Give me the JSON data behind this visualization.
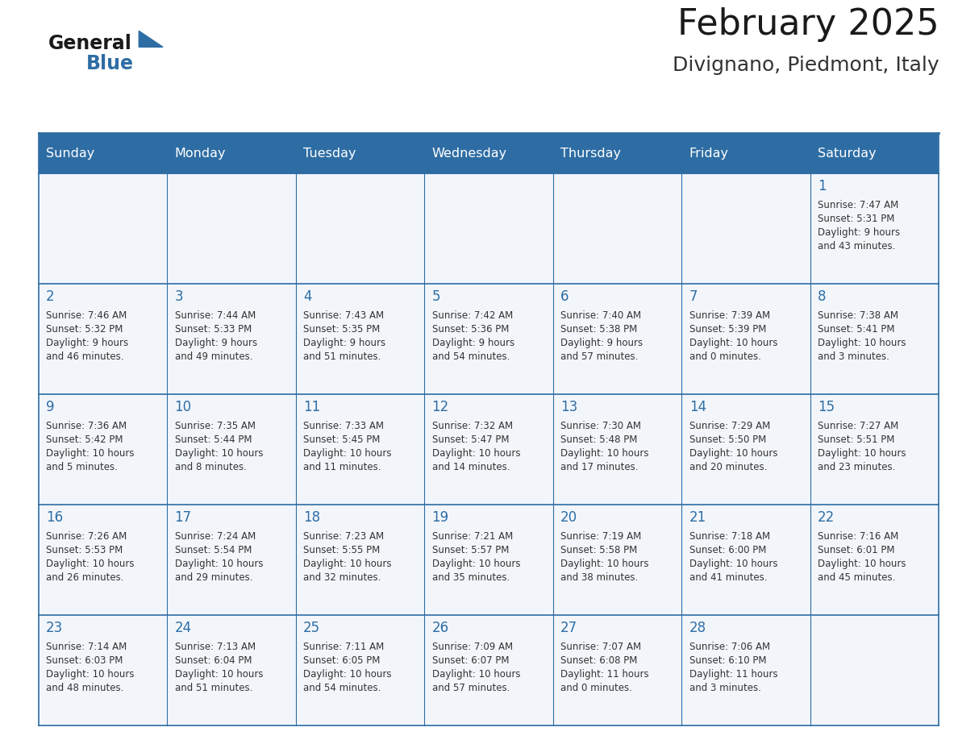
{
  "title": "February 2025",
  "subtitle": "Divignano, Piedmont, Italy",
  "header_bg_color": "#2E6DA4",
  "header_text_color": "#FFFFFF",
  "cell_bg_color": "#F0F4F8",
  "cell_alt_bg_color": "#FFFFFF",
  "border_color": "#2E6DA4",
  "text_color": "#333333",
  "day_number_color": "#2E6DA4",
  "days_of_week": [
    "Sunday",
    "Monday",
    "Tuesday",
    "Wednesday",
    "Thursday",
    "Friday",
    "Saturday"
  ],
  "logo_text1": "General",
  "logo_text2": "Blue",
  "logo_triangle_color": "#2E6DA4",
  "calendar_data": [
    [
      null,
      null,
      null,
      null,
      null,
      null,
      {
        "day": 1,
        "sunrise": "7:47 AM",
        "sunset": "5:31 PM",
        "daylight": "9 hours\nand 43 minutes."
      }
    ],
    [
      {
        "day": 2,
        "sunrise": "7:46 AM",
        "sunset": "5:32 PM",
        "daylight": "9 hours\nand 46 minutes."
      },
      {
        "day": 3,
        "sunrise": "7:44 AM",
        "sunset": "5:33 PM",
        "daylight": "9 hours\nand 49 minutes."
      },
      {
        "day": 4,
        "sunrise": "7:43 AM",
        "sunset": "5:35 PM",
        "daylight": "9 hours\nand 51 minutes."
      },
      {
        "day": 5,
        "sunrise": "7:42 AM",
        "sunset": "5:36 PM",
        "daylight": "9 hours\nand 54 minutes."
      },
      {
        "day": 6,
        "sunrise": "7:40 AM",
        "sunset": "5:38 PM",
        "daylight": "9 hours\nand 57 minutes."
      },
      {
        "day": 7,
        "sunrise": "7:39 AM",
        "sunset": "5:39 PM",
        "daylight": "10 hours\nand 0 minutes."
      },
      {
        "day": 8,
        "sunrise": "7:38 AM",
        "sunset": "5:41 PM",
        "daylight": "10 hours\nand 3 minutes."
      }
    ],
    [
      {
        "day": 9,
        "sunrise": "7:36 AM",
        "sunset": "5:42 PM",
        "daylight": "10 hours\nand 5 minutes."
      },
      {
        "day": 10,
        "sunrise": "7:35 AM",
        "sunset": "5:44 PM",
        "daylight": "10 hours\nand 8 minutes."
      },
      {
        "day": 11,
        "sunrise": "7:33 AM",
        "sunset": "5:45 PM",
        "daylight": "10 hours\nand 11 minutes."
      },
      {
        "day": 12,
        "sunrise": "7:32 AM",
        "sunset": "5:47 PM",
        "daylight": "10 hours\nand 14 minutes."
      },
      {
        "day": 13,
        "sunrise": "7:30 AM",
        "sunset": "5:48 PM",
        "daylight": "10 hours\nand 17 minutes."
      },
      {
        "day": 14,
        "sunrise": "7:29 AM",
        "sunset": "5:50 PM",
        "daylight": "10 hours\nand 20 minutes."
      },
      {
        "day": 15,
        "sunrise": "7:27 AM",
        "sunset": "5:51 PM",
        "daylight": "10 hours\nand 23 minutes."
      }
    ],
    [
      {
        "day": 16,
        "sunrise": "7:26 AM",
        "sunset": "5:53 PM",
        "daylight": "10 hours\nand 26 minutes."
      },
      {
        "day": 17,
        "sunrise": "7:24 AM",
        "sunset": "5:54 PM",
        "daylight": "10 hours\nand 29 minutes."
      },
      {
        "day": 18,
        "sunrise": "7:23 AM",
        "sunset": "5:55 PM",
        "daylight": "10 hours\nand 32 minutes."
      },
      {
        "day": 19,
        "sunrise": "7:21 AM",
        "sunset": "5:57 PM",
        "daylight": "10 hours\nand 35 minutes."
      },
      {
        "day": 20,
        "sunrise": "7:19 AM",
        "sunset": "5:58 PM",
        "daylight": "10 hours\nand 38 minutes."
      },
      {
        "day": 21,
        "sunrise": "7:18 AM",
        "sunset": "6:00 PM",
        "daylight": "10 hours\nand 41 minutes."
      },
      {
        "day": 22,
        "sunrise": "7:16 AM",
        "sunset": "6:01 PM",
        "daylight": "10 hours\nand 45 minutes."
      }
    ],
    [
      {
        "day": 23,
        "sunrise": "7:14 AM",
        "sunset": "6:03 PM",
        "daylight": "10 hours\nand 48 minutes."
      },
      {
        "day": 24,
        "sunrise": "7:13 AM",
        "sunset": "6:04 PM",
        "daylight": "10 hours\nand 51 minutes."
      },
      {
        "day": 25,
        "sunrise": "7:11 AM",
        "sunset": "6:05 PM",
        "daylight": "10 hours\nand 54 minutes."
      },
      {
        "day": 26,
        "sunrise": "7:09 AM",
        "sunset": "6:07 PM",
        "daylight": "10 hours\nand 57 minutes."
      },
      {
        "day": 27,
        "sunrise": "7:07 AM",
        "sunset": "6:08 PM",
        "daylight": "11 hours\nand 0 minutes."
      },
      {
        "day": 28,
        "sunrise": "7:06 AM",
        "sunset": "6:10 PM",
        "daylight": "11 hours\nand 3 minutes."
      },
      null
    ]
  ]
}
